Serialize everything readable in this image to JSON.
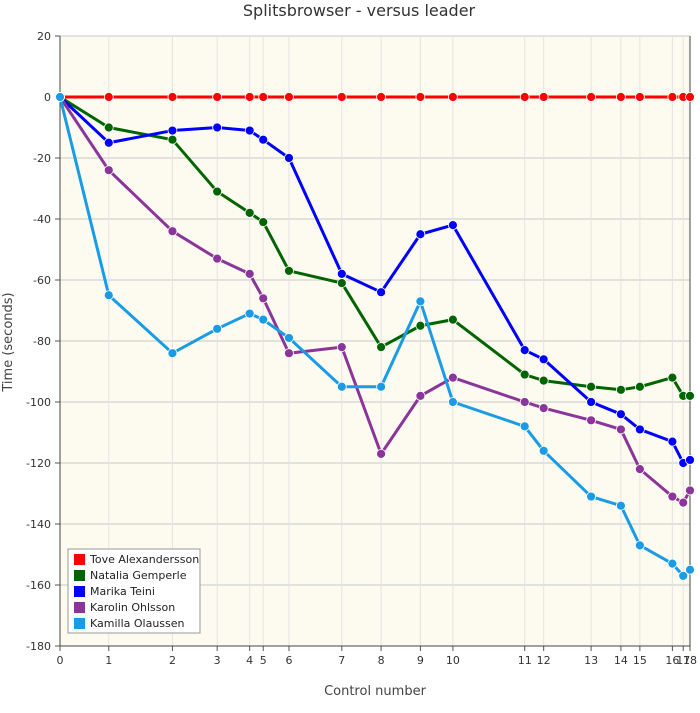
{
  "chart_data": {
    "type": "line",
    "title": "Splitsbrowser - versus leader",
    "xlabel": "Control number",
    "ylabel": "Time (seconds)",
    "ylim": [
      -180,
      20
    ],
    "yticks": [
      20,
      0,
      -20,
      -40,
      -60,
      -80,
      -100,
      -120,
      -140,
      -160,
      -180
    ],
    "x_positions": [
      0,
      1,
      2,
      3,
      4,
      5,
      6,
      7,
      8,
      9,
      10,
      11,
      12,
      13,
      14,
      15,
      16,
      17,
      18
    ],
    "x_ticks": [
      "0",
      "1",
      "2",
      "3",
      "4",
      "5",
      "6",
      "7",
      "8",
      "9",
      "10",
      "11",
      "12",
      "13",
      "14",
      "15",
      "16",
      "17",
      "18"
    ],
    "x_tick_cum": [
      0,
      36,
      83,
      116,
      140,
      150,
      169,
      208,
      237,
      266,
      290,
      343,
      357,
      392,
      414,
      428,
      452,
      460,
      465
    ],
    "grid": true,
    "legend_position": "bottom-left",
    "plot_background": "#fdfbf0",
    "series": [
      {
        "name": "Tove Alexandersson",
        "color": "#ff0000",
        "values": [
          0,
          0,
          0,
          0,
          0,
          0,
          0,
          0,
          0,
          0,
          0,
          0,
          0,
          0,
          0,
          0,
          0,
          0,
          0
        ]
      },
      {
        "name": "Natalia Gemperle",
        "color": "#006400",
        "values": [
          0,
          -10,
          -14,
          -31,
          -38,
          -41,
          -57,
          -61,
          -82,
          -75,
          -73,
          -91,
          -93,
          -95,
          -96,
          -95,
          -92,
          -98,
          -98
        ]
      },
      {
        "name": "Marika Teini",
        "color": "#0000ff",
        "values": [
          0,
          -15,
          -11,
          -10,
          -11,
          -14,
          -20,
          -58,
          -64,
          -45,
          -42,
          -83,
          -86,
          -100,
          -104,
          -109,
          -113,
          -120,
          -119
        ]
      },
      {
        "name": "Karolin Ohlsson",
        "color": "#8b359b",
        "values": [
          0,
          -24,
          -44,
          -53,
          -58,
          -66,
          -84,
          -82,
          -117,
          -98,
          -92,
          -100,
          -102,
          -106,
          -109,
          -122,
          -131,
          -133,
          -129
        ]
      },
      {
        "name": "Kamilla Olaussen",
        "color": "#1a9be6",
        "values": [
          0,
          -65,
          -84,
          -76,
          -71,
          -73,
          -79,
          -95,
          -95,
          -67,
          -100,
          -108,
          -116,
          -131,
          -134,
          -147,
          -153,
          -157,
          -155
        ]
      }
    ]
  }
}
